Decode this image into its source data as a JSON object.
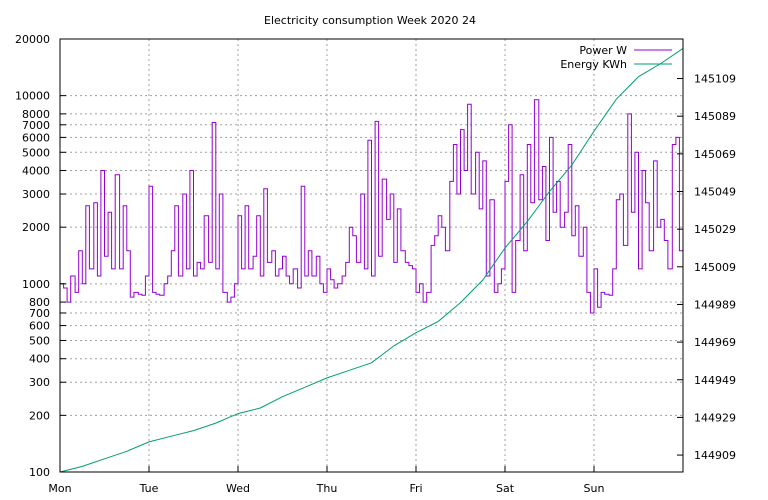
{
  "chart_data": {
    "type": "line",
    "title": "Electricity consumption Week 2020 24",
    "x_ticks": [
      "Mon",
      "Tue",
      "Wed",
      "Thu",
      "Fri",
      "Sat",
      "Sun"
    ],
    "x_range_days": [
      0,
      7
    ],
    "left_axis": {
      "scale": "log",
      "range": [
        100,
        20000
      ],
      "ticks": [
        "100",
        "200",
        "300",
        "400",
        "500",
        "600",
        "700",
        "800",
        "1000",
        "2000",
        "3000",
        "4000",
        "5000",
        "6000",
        "7000",
        "8000",
        "10000",
        "20000"
      ]
    },
    "right_axis": {
      "scale": "linear",
      "range": [
        144900,
        145130
      ],
      "ticks": [
        "144909",
        "144929",
        "144949",
        "144969",
        "144989",
        "145009",
        "145029",
        "145049",
        "145069",
        "145089",
        "145109"
      ]
    },
    "grid": true,
    "legend_position": "top-right",
    "series": [
      {
        "name": "Power W",
        "color": "#9400d3",
        "axis": "left",
        "note": "step series sampled ~hourly, values in W",
        "x": [
          0.0,
          0.04,
          0.08,
          0.12,
          0.17,
          0.21,
          0.25,
          0.29,
          0.33,
          0.38,
          0.42,
          0.46,
          0.5,
          0.54,
          0.58,
          0.62,
          0.67,
          0.71,
          0.75,
          0.79,
          0.83,
          0.88,
          0.92,
          0.96,
          1.0,
          1.04,
          1.08,
          1.12,
          1.17,
          1.21,
          1.25,
          1.29,
          1.33,
          1.38,
          1.42,
          1.46,
          1.5,
          1.54,
          1.58,
          1.62,
          1.67,
          1.71,
          1.75,
          1.79,
          1.83,
          1.88,
          1.92,
          1.96,
          2.0,
          2.04,
          2.08,
          2.12,
          2.17,
          2.21,
          2.25,
          2.29,
          2.33,
          2.38,
          2.42,
          2.46,
          2.5,
          2.54,
          2.58,
          2.62,
          2.67,
          2.71,
          2.75,
          2.79,
          2.83,
          2.88,
          2.92,
          2.96,
          3.0,
          3.04,
          3.08,
          3.12,
          3.17,
          3.21,
          3.25,
          3.29,
          3.33,
          3.38,
          3.42,
          3.46,
          3.5,
          3.54,
          3.58,
          3.62,
          3.67,
          3.71,
          3.75,
          3.79,
          3.83,
          3.88,
          3.92,
          3.96,
          4.0,
          4.04,
          4.08,
          4.12,
          4.17,
          4.21,
          4.25,
          4.29,
          4.33,
          4.38,
          4.42,
          4.46,
          4.5,
          4.54,
          4.58,
          4.62,
          4.67,
          4.71,
          4.75,
          4.79,
          4.83,
          4.88,
          4.92,
          4.96,
          5.0,
          5.04,
          5.08,
          5.12,
          5.17,
          5.21,
          5.25,
          5.29,
          5.33,
          5.38,
          5.42,
          5.46,
          5.5,
          5.54,
          5.58,
          5.62,
          5.67,
          5.71,
          5.75,
          5.79,
          5.83,
          5.88,
          5.92,
          5.96,
          6.0,
          6.04,
          6.08,
          6.12,
          6.17,
          6.21,
          6.25,
          6.29,
          6.33,
          6.38,
          6.42,
          6.46,
          6.5,
          6.54,
          6.58,
          6.62,
          6.67,
          6.71,
          6.75,
          6.79,
          6.83,
          6.88,
          6.92,
          6.96,
          7.0
        ],
        "values": [
          1000,
          950,
          800,
          1100,
          900,
          1500,
          1000,
          2600,
          1200,
          2700,
          1100,
          4000,
          1400,
          2400,
          1200,
          3800,
          1200,
          2600,
          1500,
          850,
          900,
          880,
          870,
          1100,
          3300,
          900,
          880,
          870,
          1000,
          1100,
          1500,
          2600,
          1100,
          3000,
          1200,
          4000,
          1100,
          1300,
          1200,
          2300,
          1300,
          7200,
          1200,
          3000,
          900,
          800,
          850,
          1000,
          2300,
          1200,
          2600,
          1200,
          1400,
          2300,
          1100,
          3200,
          1300,
          1500,
          1100,
          1200,
          1400,
          1100,
          1000,
          1200,
          950,
          3300,
          1100,
          1500,
          1100,
          1400,
          1000,
          900,
          1200,
          1050,
          950,
          1000,
          1100,
          1300,
          2000,
          1800,
          1300,
          3000,
          1200,
          5800,
          1100,
          7300,
          1400,
          3600,
          2200,
          3000,
          1300,
          2500,
          1500,
          1300,
          1250,
          1200,
          900,
          1000,
          800,
          900,
          1600,
          1800,
          2300,
          2000,
          1500,
          3500,
          5500,
          3000,
          6600,
          4000,
          9000,
          3000,
          5000,
          2500,
          4500,
          1100,
          2800,
          900,
          1000,
          1200,
          3500,
          7000,
          900,
          1700,
          3800,
          1500,
          5500,
          2700,
          9500,
          2800,
          4200,
          1700,
          6000,
          2400,
          3500,
          2000,
          2400,
          5500,
          1800,
          2600,
          1400,
          2000,
          900,
          700,
          1200,
          750,
          900,
          880,
          870,
          1200,
          2800,
          3000,
          1600,
          8000,
          2400,
          5000,
          1200,
          4000,
          2700,
          1500,
          4500,
          2000,
          2200,
          1700,
          1200,
          5500,
          6000,
          1500,
          1500
        ],
        "range_observed": [
          620,
          12000
        ]
      },
      {
        "name": "Energy KWh",
        "color": "#009e73",
        "axis": "right",
        "note": "cumulative meter reading in kWh",
        "x": [
          0.0,
          0.25,
          0.5,
          0.75,
          1.0,
          1.25,
          1.5,
          1.75,
          2.0,
          2.25,
          2.5,
          2.75,
          3.0,
          3.25,
          3.5,
          3.75,
          4.0,
          4.25,
          4.5,
          4.75,
          5.0,
          5.25,
          5.5,
          5.75,
          6.0,
          6.25,
          6.5,
          6.75,
          7.0
        ],
        "values": [
          144900,
          144903,
          144907,
          144911,
          144916,
          144919,
          144922,
          144926,
          144931,
          144934,
          144940,
          144945,
          144950,
          144954,
          144958,
          144967,
          144974,
          144980,
          144990,
          145002,
          145019,
          145033,
          145049,
          145063,
          145081,
          145098,
          145110,
          145117,
          145125
        ]
      }
    ]
  }
}
